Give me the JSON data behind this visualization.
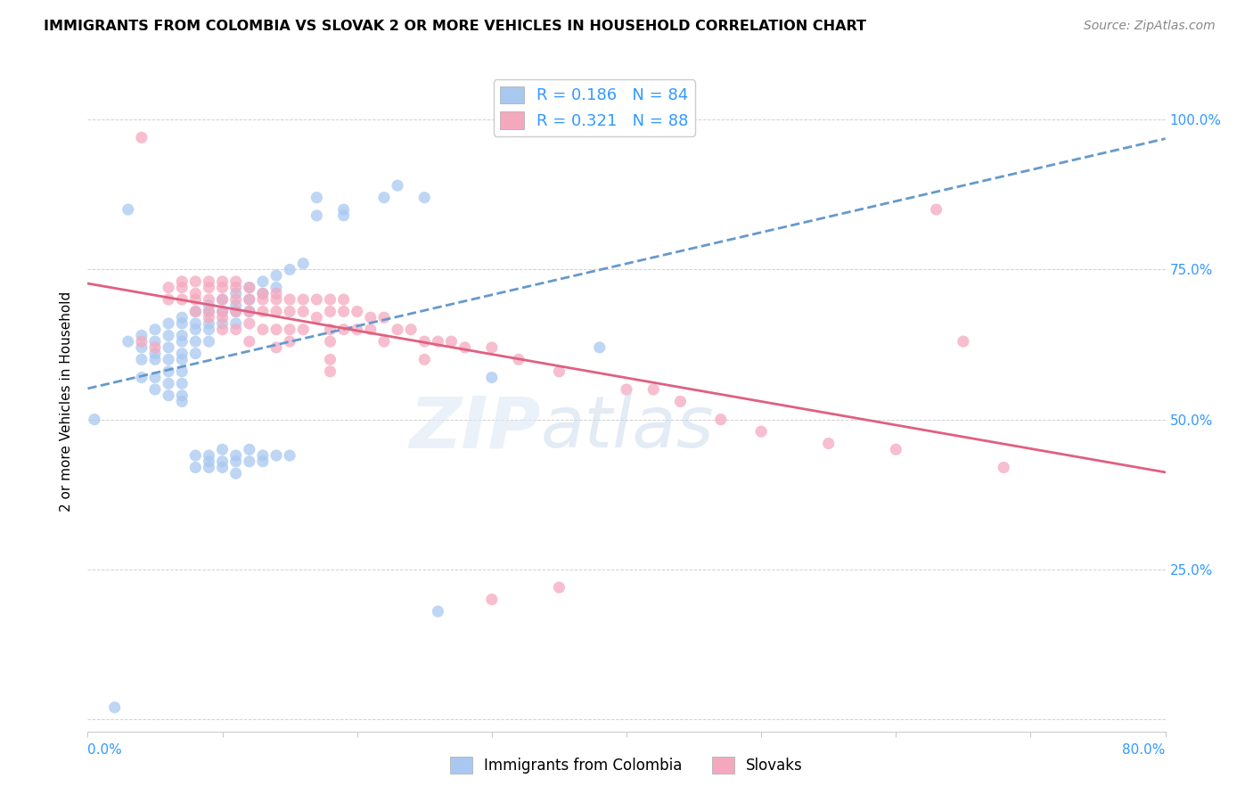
{
  "title": "IMMIGRANTS FROM COLOMBIA VS SLOVAK 2 OR MORE VEHICLES IN HOUSEHOLD CORRELATION CHART",
  "source": "Source: ZipAtlas.com",
  "ylabel": "2 or more Vehicles in Household",
  "xlim": [
    0.0,
    0.8
  ],
  "ylim": [
    -0.02,
    1.08
  ],
  "ytick_vals": [
    0.0,
    0.25,
    0.5,
    0.75,
    1.0
  ],
  "ytick_labels_right": [
    "",
    "25.0%",
    "50.0%",
    "75.0%",
    "100.0%"
  ],
  "legend_R1": "0.186",
  "legend_N1": "84",
  "legend_R2": "0.321",
  "legend_N2": "88",
  "color_colombia": "#a8c8f0",
  "color_slovak": "#f4a8be",
  "color_line_colombia": "#6699cc",
  "color_line_slovak": "#e06080",
  "colombia_x": [
    0.005,
    0.02,
    0.03,
    0.03,
    0.04,
    0.04,
    0.04,
    0.04,
    0.05,
    0.05,
    0.05,
    0.05,
    0.05,
    0.05,
    0.06,
    0.06,
    0.06,
    0.06,
    0.06,
    0.06,
    0.06,
    0.07,
    0.07,
    0.07,
    0.07,
    0.07,
    0.07,
    0.07,
    0.07,
    0.07,
    0.07,
    0.08,
    0.08,
    0.08,
    0.08,
    0.08,
    0.08,
    0.08,
    0.09,
    0.09,
    0.09,
    0.09,
    0.09,
    0.09,
    0.09,
    0.09,
    0.1,
    0.1,
    0.1,
    0.1,
    0.1,
    0.1,
    0.11,
    0.11,
    0.11,
    0.11,
    0.11,
    0.11,
    0.11,
    0.12,
    0.12,
    0.12,
    0.12,
    0.12,
    0.13,
    0.13,
    0.13,
    0.13,
    0.14,
    0.14,
    0.14,
    0.15,
    0.15,
    0.16,
    0.17,
    0.17,
    0.19,
    0.19,
    0.22,
    0.23,
    0.25,
    0.26,
    0.3,
    0.38
  ],
  "colombia_y": [
    0.5,
    0.02,
    0.63,
    0.85,
    0.64,
    0.62,
    0.6,
    0.57,
    0.65,
    0.63,
    0.61,
    0.6,
    0.57,
    0.55,
    0.66,
    0.64,
    0.62,
    0.6,
    0.58,
    0.56,
    0.54,
    0.67,
    0.66,
    0.64,
    0.63,
    0.61,
    0.6,
    0.58,
    0.56,
    0.54,
    0.53,
    0.68,
    0.66,
    0.65,
    0.63,
    0.61,
    0.44,
    0.42,
    0.69,
    0.68,
    0.66,
    0.65,
    0.63,
    0.44,
    0.43,
    0.42,
    0.7,
    0.68,
    0.66,
    0.45,
    0.43,
    0.42,
    0.71,
    0.69,
    0.68,
    0.66,
    0.44,
    0.43,
    0.41,
    0.72,
    0.7,
    0.68,
    0.45,
    0.43,
    0.73,
    0.71,
    0.44,
    0.43,
    0.74,
    0.72,
    0.44,
    0.75,
    0.44,
    0.76,
    0.87,
    0.84,
    0.85,
    0.84,
    0.87,
    0.89,
    0.87,
    0.18,
    0.57,
    0.62
  ],
  "slovak_x": [
    0.04,
    0.04,
    0.05,
    0.06,
    0.06,
    0.07,
    0.07,
    0.07,
    0.08,
    0.08,
    0.08,
    0.08,
    0.09,
    0.09,
    0.09,
    0.09,
    0.09,
    0.1,
    0.1,
    0.1,
    0.1,
    0.1,
    0.1,
    0.11,
    0.11,
    0.11,
    0.11,
    0.11,
    0.12,
    0.12,
    0.12,
    0.12,
    0.12,
    0.13,
    0.13,
    0.13,
    0.13,
    0.14,
    0.14,
    0.14,
    0.14,
    0.14,
    0.15,
    0.15,
    0.15,
    0.15,
    0.16,
    0.16,
    0.16,
    0.17,
    0.17,
    0.18,
    0.18,
    0.18,
    0.18,
    0.18,
    0.18,
    0.19,
    0.19,
    0.19,
    0.2,
    0.2,
    0.21,
    0.21,
    0.22,
    0.22,
    0.23,
    0.24,
    0.25,
    0.25,
    0.26,
    0.27,
    0.28,
    0.3,
    0.32,
    0.35,
    0.4,
    0.42,
    0.44,
    0.47,
    0.5,
    0.55,
    0.6,
    0.63,
    0.65,
    0.68,
    0.35,
    0.3
  ],
  "slovak_y": [
    0.97,
    0.63,
    0.62,
    0.72,
    0.7,
    0.73,
    0.72,
    0.7,
    0.73,
    0.71,
    0.7,
    0.68,
    0.73,
    0.72,
    0.7,
    0.68,
    0.67,
    0.73,
    0.72,
    0.7,
    0.68,
    0.67,
    0.65,
    0.73,
    0.72,
    0.7,
    0.68,
    0.65,
    0.72,
    0.7,
    0.68,
    0.66,
    0.63,
    0.71,
    0.7,
    0.68,
    0.65,
    0.71,
    0.7,
    0.68,
    0.65,
    0.62,
    0.7,
    0.68,
    0.65,
    0.63,
    0.7,
    0.68,
    0.65,
    0.7,
    0.67,
    0.7,
    0.68,
    0.65,
    0.63,
    0.6,
    0.58,
    0.7,
    0.68,
    0.65,
    0.68,
    0.65,
    0.67,
    0.65,
    0.67,
    0.63,
    0.65,
    0.65,
    0.63,
    0.6,
    0.63,
    0.63,
    0.62,
    0.62,
    0.6,
    0.58,
    0.55,
    0.55,
    0.53,
    0.5,
    0.48,
    0.46,
    0.45,
    0.85,
    0.63,
    0.42,
    0.22,
    0.2
  ]
}
